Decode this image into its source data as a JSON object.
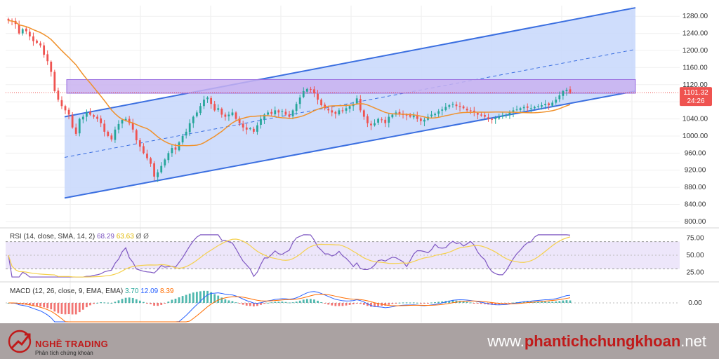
{
  "chart_data": [
    {
      "type": "candlestick",
      "title": "",
      "price_axis": {
        "ticks": [
          1280,
          1240,
          1200,
          1160,
          1120,
          1080,
          1040,
          1000,
          960,
          920,
          880,
          840,
          800
        ],
        "range": [
          790,
          1305
        ]
      },
      "last_price": "1101.32",
      "countdown": "24:26",
      "close": [
        1270,
        1268,
        1262,
        1240,
        1250,
        1245,
        1233,
        1222,
        1218,
        1212,
        1190,
        1175,
        1150,
        1105,
        1085,
        1070,
        1060,
        1050,
        1020,
        1005,
        1040,
        1045,
        1055,
        1050,
        1045,
        1040,
        1030,
        1010,
        1000,
        992,
        1015,
        1028,
        1038,
        1040,
        1030,
        1015,
        990,
        975,
        960,
        948,
        935,
        905,
        915,
        930,
        945,
        960,
        972,
        968,
        985,
        1000,
        1010,
        1030,
        1045,
        1055,
        1070,
        1085,
        1090,
        1075,
        1060,
        1065,
        1050,
        1045,
        1050,
        1055,
        1040,
        1030,
        1020,
        1015,
        1018,
        1010,
        1025,
        1040,
        1050,
        1055,
        1052,
        1060,
        1055,
        1058,
        1050,
        1045,
        1060,
        1075,
        1090,
        1105,
        1110,
        1108,
        1100,
        1085,
        1072,
        1065,
        1060,
        1055,
        1052,
        1060,
        1058,
        1065,
        1070,
        1075,
        1088,
        1060,
        1045,
        1030,
        1025,
        1030,
        1040,
        1038,
        1030,
        1045,
        1050,
        1055,
        1052,
        1050,
        1048,
        1045,
        1048,
        1040,
        1035,
        1038,
        1045,
        1050,
        1052,
        1058,
        1062,
        1068,
        1072,
        1075,
        1070,
        1068,
        1065,
        1060,
        1058,
        1055,
        1050,
        1048,
        1045,
        1040,
        1038,
        1042,
        1045,
        1048,
        1050,
        1055,
        1060,
        1062,
        1065,
        1068,
        1066,
        1065,
        1068,
        1070,
        1072,
        1075,
        1072,
        1078,
        1085,
        1095,
        1105,
        1108,
        1101.32
      ],
      "ma_period": 20,
      "channel": {
        "upper": [
          [
            0.1,
            1045
          ],
          [
            0.9,
            1300
          ]
        ],
        "lower": [
          [
            0.1,
            855
          ],
          [
            0.9,
            1105
          ]
        ],
        "fill": "#c7d7fb",
        "line": "#3b6fe0"
      },
      "resistance_zone": {
        "range": [
          1100,
          1132
        ],
        "fill": "#c9b1f0"
      },
      "colors": {
        "up": "#26a69a",
        "down": "#ef5350",
        "ma": "#f0912b"
      }
    },
    {
      "type": "line",
      "indicator_label": "RSI (14, close, SMA, 14, 2)",
      "values_label": [
        "68.29",
        "63.63",
        "Ø",
        "Ø"
      ],
      "ticks": [
        75.0,
        50.0,
        25.0
      ],
      "levels": [
        70,
        30
      ],
      "colors": {
        "rsi": "#7e57c2",
        "sma": "#f5d04b"
      }
    },
    {
      "type": "histogram",
      "indicator_label": "MACD (12, 26, close, 9, EMA, EMA)",
      "values_label": [
        "3.70",
        "12.09",
        "8.39"
      ],
      "ticks": [
        0.0
      ],
      "colors": {
        "macd": "#2962ff",
        "signal": "#ff6d00",
        "hist_up": "#26a69a",
        "hist_down": "#ef5350"
      }
    }
  ],
  "footer": {
    "brand": "NGHỀ TRADING",
    "tagline": "Phân tích chứng khoán",
    "site_prefix": "www.",
    "site_name": "phantichchungkhoan",
    "site_suffix": ".net"
  }
}
